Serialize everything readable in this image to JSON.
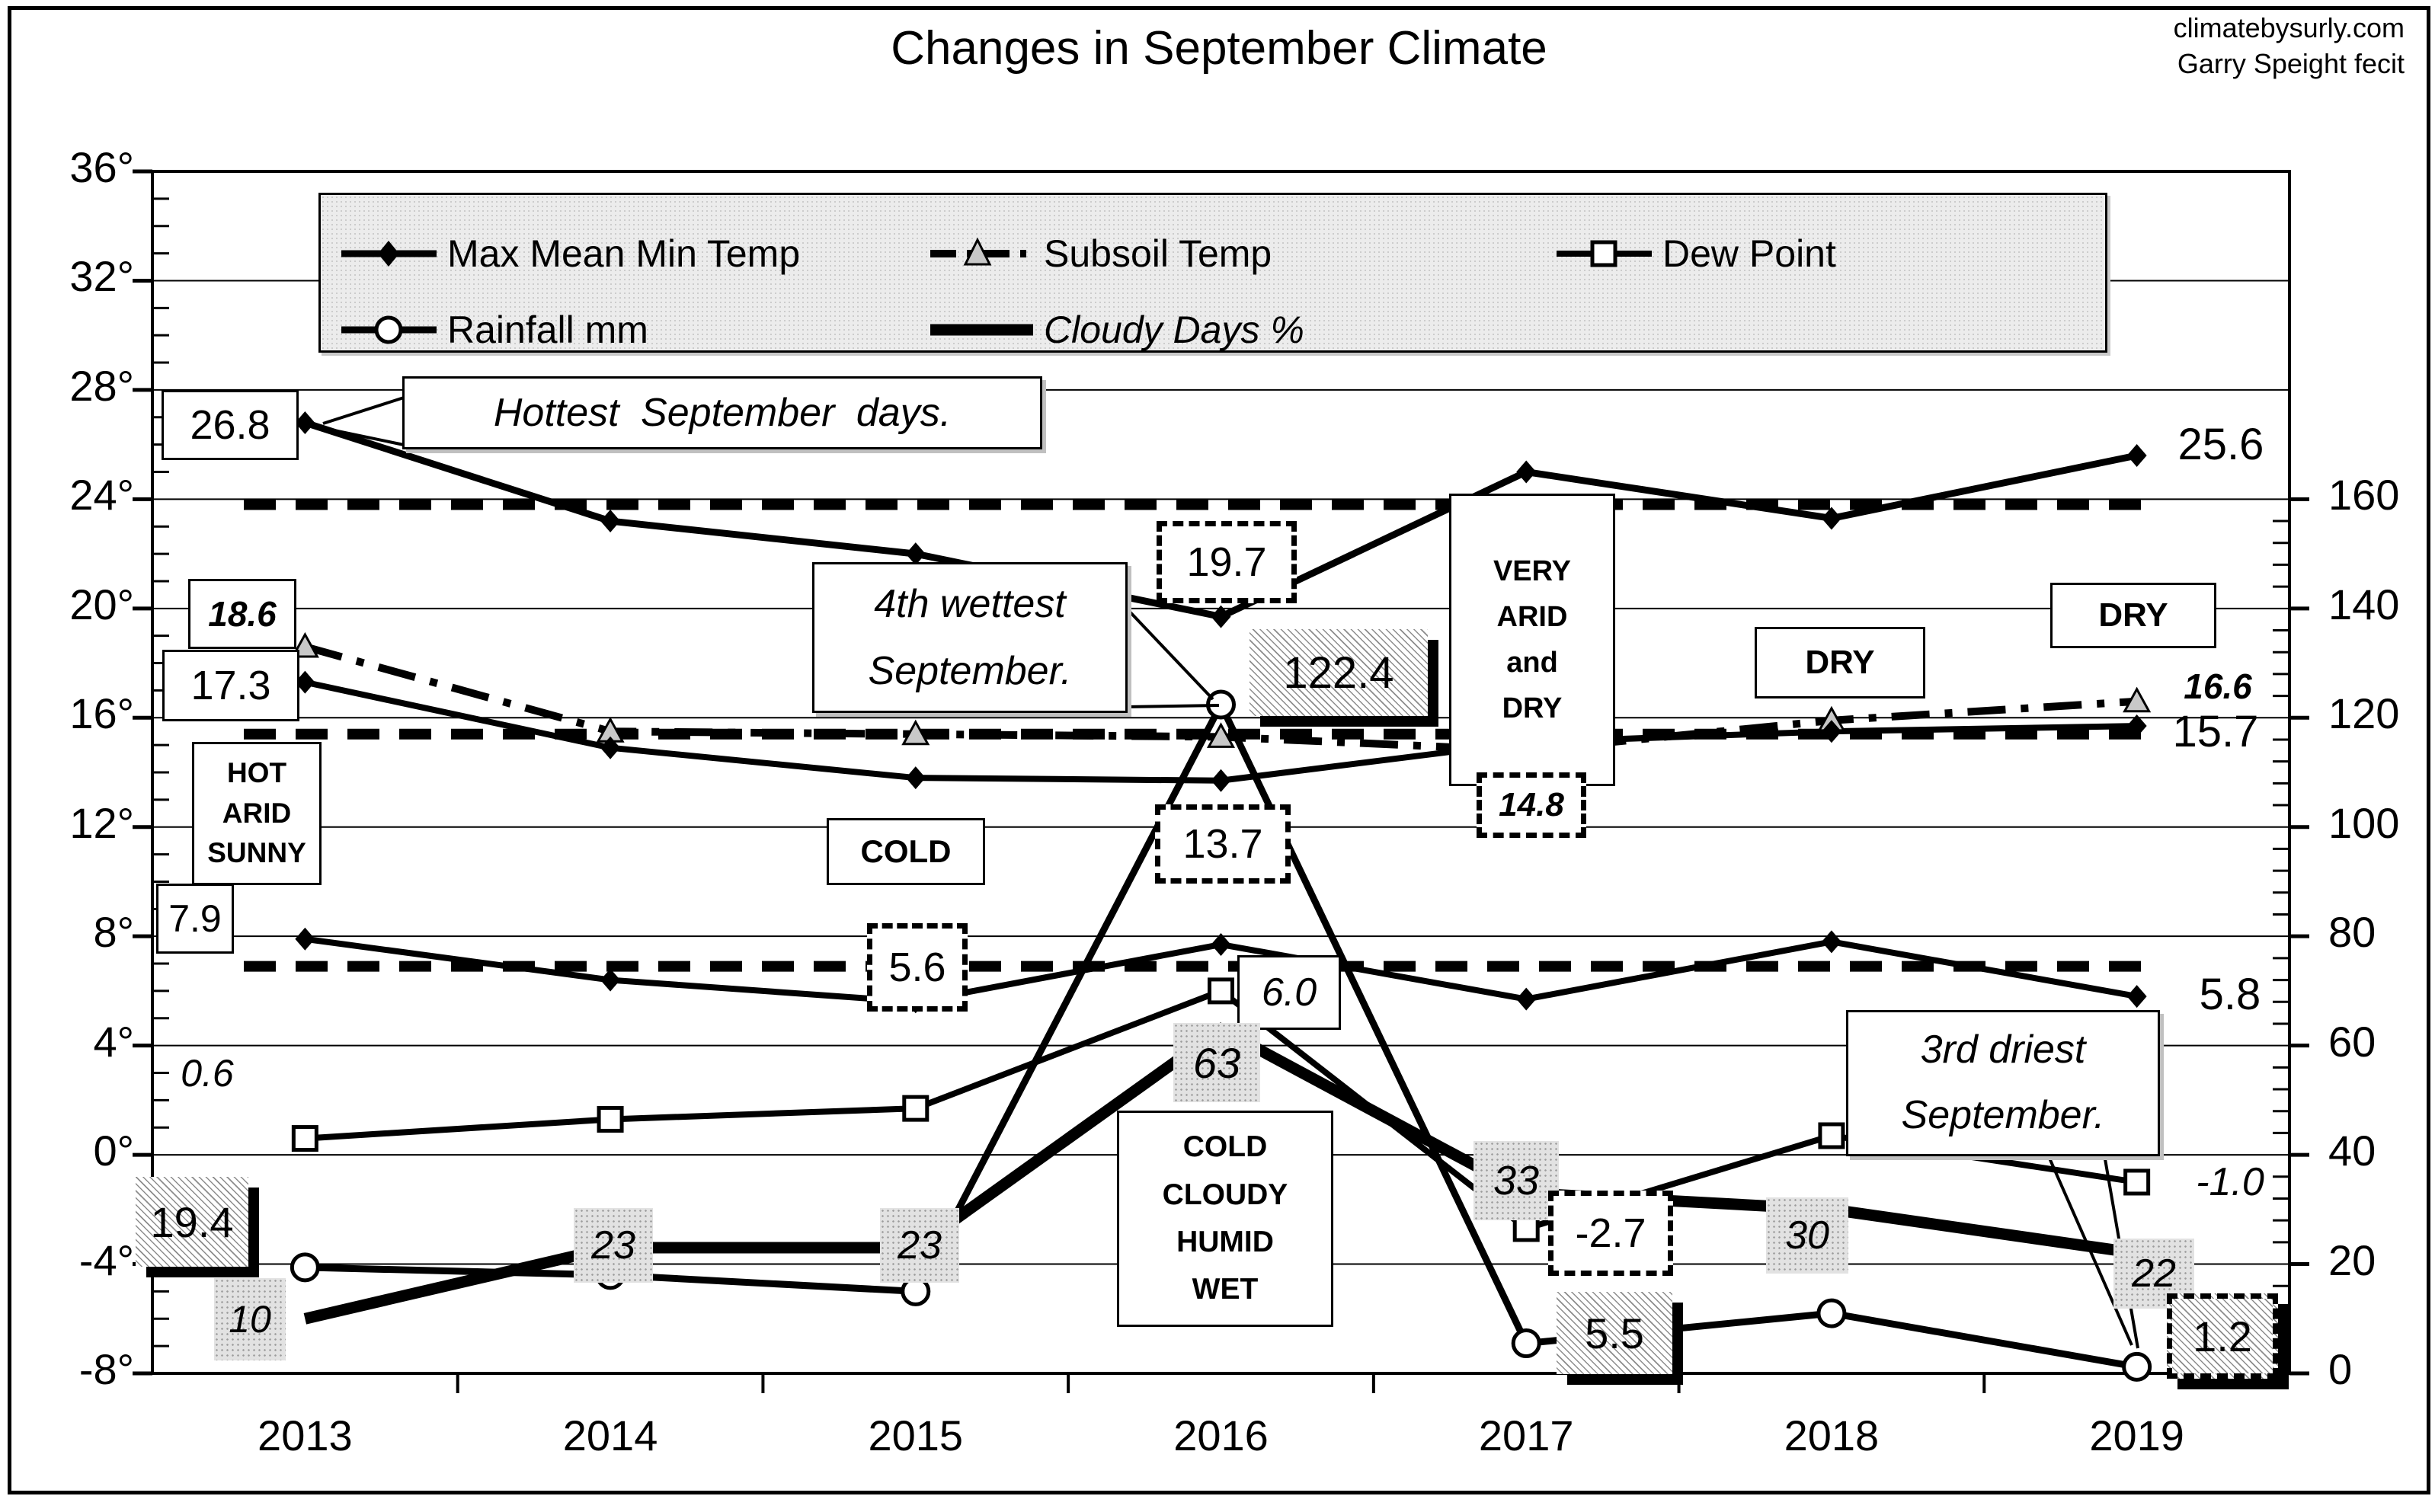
{
  "page": {
    "title": "Changes in September Climate",
    "credit_line1": "climatebysurly.com",
    "credit_line2": "Garry Speight fecit"
  },
  "chart_data": {
    "type": "line",
    "title": "Changes in September Climate",
    "categories": [
      "2013",
      "2014",
      "2015",
      "2016",
      "2017",
      "2018",
      "2019"
    ],
    "left_axis": {
      "unit": "degrees C",
      "min": -8,
      "max": 36,
      "step": 4,
      "ticks": [
        "36°",
        "32°",
        "28°",
        "24°",
        "20°",
        "16°",
        "12°",
        "8°",
        "4°",
        "0°",
        "-4°",
        "-8°"
      ]
    },
    "right_axis": {
      "unit": "mm / percent",
      "min": 0,
      "max": 160,
      "step": 20,
      "ticks": [
        "160",
        "140",
        "120",
        "100",
        "80",
        "60",
        "40",
        "20",
        "0"
      ]
    },
    "legend": [
      {
        "label": "Max Mean Min Temp",
        "marker": "diamond",
        "line": "solid"
      },
      {
        "label": "Subsoil Temp",
        "marker": "triangle",
        "line": "dashdot"
      },
      {
        "label": "Dew Point",
        "marker": "square",
        "line": "solid"
      },
      {
        "label": "Rainfall mm",
        "marker": "circle",
        "line": "solid"
      },
      {
        "label": "Cloudy Days %",
        "marker": "none",
        "line": "thick",
        "italic": true
      }
    ],
    "series": [
      {
        "name": "Max Temp",
        "group": "Max Mean Min Temp",
        "axis": "left",
        "line": "solid",
        "width": 9,
        "marker": "diamond",
        "values": [
          26.8,
          23.2,
          22.0,
          19.7,
          25.0,
          23.3,
          25.6
        ]
      },
      {
        "name": "Mean Temp",
        "group": "Max Mean Min Temp",
        "axis": "left",
        "line": "solid",
        "width": 8,
        "marker": "diamond",
        "values": [
          17.3,
          14.9,
          13.8,
          13.7,
          15.1,
          15.5,
          15.7
        ]
      },
      {
        "name": "Min Temp",
        "group": "Max Mean Min Temp",
        "axis": "left",
        "line": "solid",
        "width": 8,
        "marker": "diamond",
        "values": [
          7.9,
          6.4,
          5.6,
          7.7,
          5.7,
          7.8,
          5.8
        ]
      },
      {
        "name": "Subsoil Temp",
        "axis": "left",
        "line": "dashdot",
        "width": 10,
        "marker": "triangle",
        "values": [
          18.6,
          15.5,
          15.4,
          15.3,
          14.8,
          15.9,
          16.6
        ]
      },
      {
        "name": "Dew Point",
        "axis": "left",
        "line": "solid",
        "width": 8,
        "marker": "square",
        "values": [
          0.6,
          1.3,
          1.7,
          6.0,
          -2.7,
          0.7,
          -1.0
        ]
      },
      {
        "name": "Rainfall mm",
        "axis": "right",
        "line": "solid",
        "width": 9,
        "marker": "circle",
        "values": [
          19.4,
          18,
          15,
          122.4,
          5.5,
          11,
          1.2
        ]
      },
      {
        "name": "Cloudy Days %",
        "axis": "right",
        "line": "solid",
        "width": 15,
        "marker": "none",
        "values": [
          10,
          23,
          23,
          63,
          33,
          30,
          22
        ]
      }
    ],
    "reference_lines": [
      {
        "value": 23.8,
        "style": "bold-dashed"
      },
      {
        "value": 15.4,
        "style": "bold-dashed"
      },
      {
        "value": 6.9,
        "style": "bold-dashed"
      }
    ],
    "grid": true,
    "legend_position": "top",
    "colors": {
      "ink": "#000000",
      "background": "#ffffff",
      "legend_fill": "#ececec"
    }
  },
  "annotations": {
    "v26_8": "26.8",
    "hottest": "Hottest September days.",
    "v18_6": "18.6",
    "v17_3": "17.3",
    "hot_arid": [
      "HOT",
      "ARID",
      "SUNNY"
    ],
    "v7_9": "7.9",
    "v0_6": "0.6",
    "v19_4": "19.4",
    "v10": "10",
    "v23a": "23",
    "v23b": "23",
    "wettest": [
      "4th wettest",
      "September."
    ],
    "v19_7": "19.7",
    "v122_4": "122.4",
    "very_arid": [
      "VERY",
      "ARID",
      "and",
      "DRY"
    ],
    "v13_7": "13.7",
    "v14_8": "14.8",
    "cold": "COLD",
    "v5_6": "5.6",
    "v6_0": "6.0",
    "v63": "63",
    "cold_cloudy": [
      "COLD",
      "CLOUDY",
      "HUMID",
      "WET"
    ],
    "v33": "33",
    "vm2_7": "-2.7",
    "v5_5": "5.5",
    "dry2018": "DRY",
    "dry2019": "DRY",
    "v25_6": "25.6",
    "v16_6": "16.6",
    "v15_7": "15.7",
    "v5_8": "5.8",
    "driest": [
      "3rd driest",
      "September."
    ],
    "vm1_0": "-1.0",
    "v30": "30",
    "v22": "22",
    "v1_2": "1.2"
  }
}
